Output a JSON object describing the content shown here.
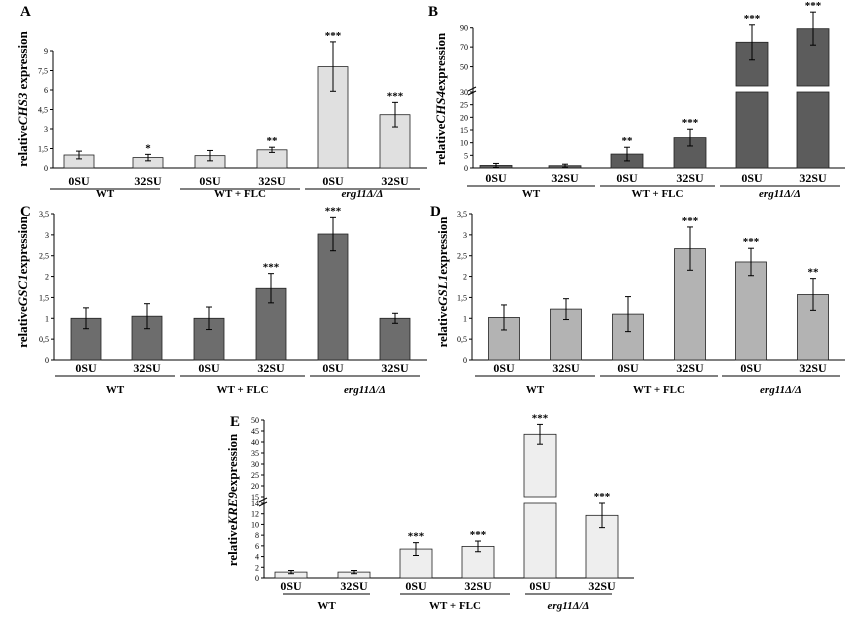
{
  "chart_data": [
    {
      "panel": "A",
      "type": "bar",
      "ylabel_prefix": "relative",
      "ylabel_gene": "CHS3",
      "ylabel_suffix": " expression",
      "categories": [
        "0SU",
        "32SU",
        "0SU",
        "32SU",
        "0SU",
        "32SU"
      ],
      "groups": [
        {
          "label": "WT",
          "italic": false
        },
        {
          "label": "WT + FLC",
          "italic": false
        },
        {
          "label": "erg11Δ/Δ",
          "italic": true
        }
      ],
      "values": [
        1.0,
        0.8,
        0.95,
        1.4,
        7.8,
        4.1
      ],
      "errors": [
        0.3,
        0.25,
        0.4,
        0.2,
        1.9,
        0.95
      ],
      "significance": [
        "",
        "*",
        "",
        "**",
        "***",
        "***"
      ],
      "yticks": [
        "0",
        "1,5",
        "3",
        "4,5",
        "6",
        "7,5",
        "9"
      ],
      "ylim": [
        0,
        10
      ],
      "bar_color": "#e0e0e0",
      "broken_axis": false
    },
    {
      "panel": "B",
      "type": "bar",
      "ylabel_prefix": "relative",
      "ylabel_gene": "CHS4",
      "ylabel_suffix": "expression",
      "categories": [
        "0SU",
        "32SU",
        "0SU",
        "32SU",
        "0SU",
        "32SU"
      ],
      "groups": [
        {
          "label": "WT",
          "italic": false
        },
        {
          "label": "WT + FLC",
          "italic": false
        },
        {
          "label": "erg11Δ/Δ",
          "italic": true
        }
      ],
      "values": [
        1.0,
        0.9,
        5.5,
        12.0,
        75,
        89
      ],
      "errors": [
        0.8,
        0.6,
        2.7,
        3.3,
        18,
        17
      ],
      "significance": [
        "",
        "",
        "**",
        "***",
        "***",
        "***"
      ],
      "yticks_lower": [
        "0",
        "5",
        "10",
        "15",
        "20",
        "25",
        "30"
      ],
      "yticks_upper": [
        "50",
        "70",
        "90"
      ],
      "bar_color": "#5c5c5c",
      "broken_axis": true
    },
    {
      "panel": "C",
      "type": "bar",
      "ylabel_prefix": "relative",
      "ylabel_gene": "GSC1",
      "ylabel_suffix": "expression",
      "categories": [
        "0SU",
        "32SU",
        "0SU",
        "32SU",
        "0SU",
        "32SU"
      ],
      "groups": [
        {
          "label": "WT",
          "italic": false
        },
        {
          "label": "WT + FLC",
          "italic": false
        },
        {
          "label": "erg11Δ/Δ",
          "italic": true
        }
      ],
      "values": [
        1.0,
        1.05,
        1.0,
        1.72,
        3.02,
        1.0
      ],
      "errors": [
        0.25,
        0.3,
        0.27,
        0.35,
        0.4,
        0.12
      ],
      "significance": [
        "",
        "",
        "",
        "***",
        "***",
        ""
      ],
      "yticks": [
        "0",
        "0,5",
        "1",
        "1,5",
        "2",
        "2,5",
        "3",
        "3,5"
      ],
      "ylim": [
        0,
        3.5
      ],
      "bar_color": "#6d6d6d",
      "broken_axis": false
    },
    {
      "panel": "D",
      "type": "bar",
      "ylabel_prefix": "relative",
      "ylabel_gene": "GSL1",
      "ylabel_suffix": "expression",
      "categories": [
        "0SU",
        "32SU",
        "0SU",
        "32SU",
        "0SU",
        "32SU"
      ],
      "groups": [
        {
          "label": "WT",
          "italic": false
        },
        {
          "label": "WT + FLC",
          "italic": false
        },
        {
          "label": "erg11Δ/Δ",
          "italic": true
        }
      ],
      "values": [
        1.02,
        1.22,
        1.1,
        2.67,
        2.35,
        1.57
      ],
      "errors": [
        0.3,
        0.25,
        0.42,
        0.52,
        0.33,
        0.38
      ],
      "significance": [
        "",
        "",
        "",
        "***",
        "***",
        "**"
      ],
      "yticks": [
        "0",
        "0,5",
        "1",
        "1,5",
        "2",
        "2,5",
        "3",
        "3,5"
      ],
      "ylim": [
        0,
        3.5
      ],
      "bar_color": "#b3b3b3",
      "broken_axis": false
    },
    {
      "panel": "E",
      "type": "bar",
      "ylabel_prefix": "relative",
      "ylabel_gene": "KRE9",
      "ylabel_suffix": "expression",
      "categories": [
        "0SU",
        "32SU",
        "0SU",
        "32SU",
        "0SU",
        "32SU"
      ],
      "groups": [
        {
          "label": "WT",
          "italic": false
        },
        {
          "label": "WT + FLC",
          "italic": false
        },
        {
          "label": "erg11Δ/Δ",
          "italic": true
        }
      ],
      "values": [
        1.1,
        1.1,
        5.4,
        5.9,
        43.5,
        11.7
      ],
      "errors": [
        0.3,
        0.3,
        1.2,
        1.0,
        4.5,
        2.3
      ],
      "significance": [
        "",
        "",
        "***",
        "***",
        "***",
        "***"
      ],
      "yticks_lower": [
        "0",
        "2",
        "4",
        "6",
        "8",
        "10",
        "12",
        "14"
      ],
      "yticks_upper": [
        "15",
        "20",
        "25",
        "30",
        "35",
        "40",
        "45",
        "50"
      ],
      "bar_color": "#eeeeee",
      "broken_axis": true
    }
  ]
}
